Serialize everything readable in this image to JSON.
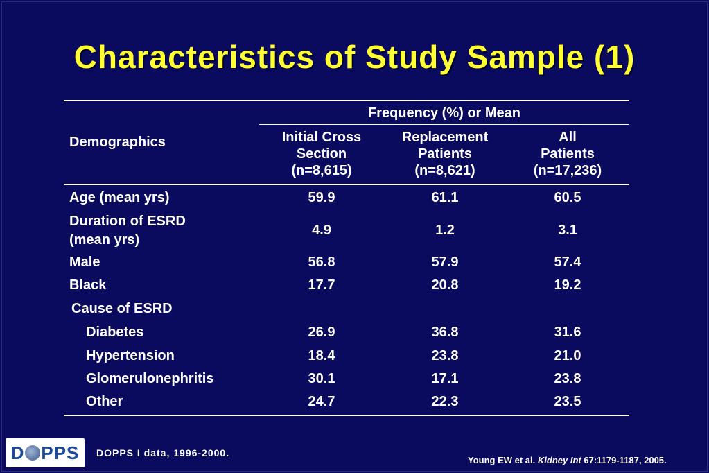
{
  "title": "Characteristics of Study Sample (1)",
  "table": {
    "group_header": "Frequency (%) or Mean",
    "row_header": "Demographics",
    "columns": [
      {
        "line1": "Initial Cross",
        "line2": "Section",
        "line3": "(n=8,615)"
      },
      {
        "line1": "Replacement",
        "line2": "Patients",
        "line3": "(n=8,621)"
      },
      {
        "line1": "All",
        "line2": "Patients",
        "line3": "(n=17,236)"
      }
    ],
    "rows": [
      {
        "label": "Age (mean yrs)",
        "values": [
          "59.9",
          "61.1",
          "60.5"
        ]
      },
      {
        "label": "Duration of ESRD",
        "label2": "(mean yrs)",
        "values": [
          "4.9",
          "1.2",
          "3.1"
        ]
      },
      {
        "label": "Male",
        "values": [
          "56.8",
          "57.9",
          "57.4"
        ]
      },
      {
        "label": "Black",
        "values": [
          "17.7",
          "20.8",
          "19.2"
        ]
      },
      {
        "label": "Cause of ESRD",
        "values": [
          "",
          "",
          ""
        ]
      },
      {
        "label": "Diabetes",
        "values": [
          "26.9",
          "36.8",
          "31.6"
        ]
      },
      {
        "label": "Hypertension",
        "values": [
          "18.4",
          "23.8",
          "21.0"
        ]
      },
      {
        "label": "Glomerulonephritis",
        "values": [
          "30.1",
          "17.1",
          "23.8"
        ]
      },
      {
        "label": "Other",
        "values": [
          "24.7",
          "22.3",
          "23.5"
        ]
      }
    ]
  },
  "logo": {
    "text_left": "D",
    "text_right": "PPS"
  },
  "footer_left": "DOPPS I data, 1996-2000.",
  "footer_right": {
    "authors": "Young EW et al.",
    "journal": "Kidney Int",
    "citation": "67:1179-1187, 2005."
  },
  "colors": {
    "background": "#0a0a5e",
    "title": "#ffff33",
    "text": "#ffffff"
  }
}
